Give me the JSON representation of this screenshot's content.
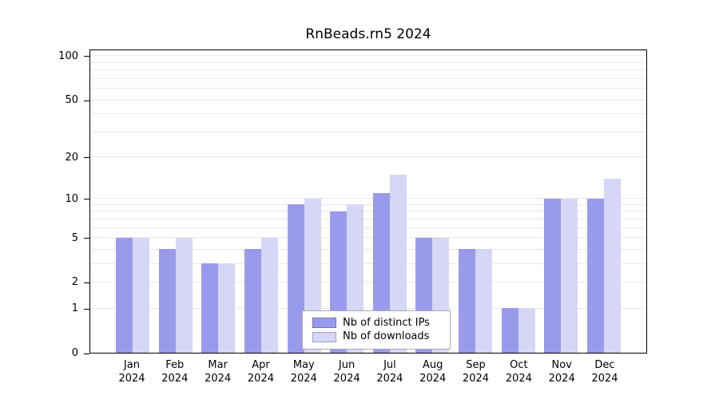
{
  "chart_data": {
    "type": "bar",
    "title": "RnBeads.rn5 2024",
    "categories": [
      "Jan",
      "Feb",
      "Mar",
      "Apr",
      "May",
      "Jun",
      "Jul",
      "Aug",
      "Sep",
      "Oct",
      "Nov",
      "Dec"
    ],
    "category_year": "2024",
    "series": [
      {
        "name": "Nb of distinct IPs",
        "color": "#9a9aec",
        "values": [
          5,
          4,
          3,
          4,
          9,
          8,
          11,
          5,
          4,
          1,
          10,
          10
        ]
      },
      {
        "name": "Nb of downloads",
        "color": "#d6d6f7",
        "values": [
          5,
          5,
          3,
          5,
          10,
          9,
          15,
          5,
          4,
          1,
          10,
          14
        ]
      }
    ],
    "y_ticks": [
      0,
      1,
      2,
      5,
      10,
      20,
      50,
      100
    ],
    "y_minor_gridlines": [
      1,
      2,
      3,
      4,
      5,
      6,
      7,
      8,
      9,
      10,
      20,
      30,
      40,
      50,
      60,
      70,
      80,
      90,
      100
    ],
    "y_scale": "log10(value+1)",
    "ylim": [
      0,
      112
    ],
    "grid": "horizontal",
    "legend_position": "bottom-center"
  }
}
